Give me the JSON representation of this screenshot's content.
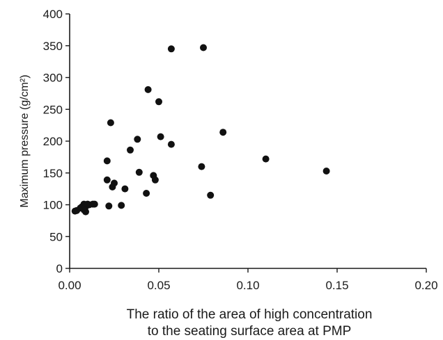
{
  "chart_data": {
    "type": "scatter",
    "title": "",
    "xlabel_lines": [
      "The ratio of the area of high concentration",
      "to the seating surface area at PMP"
    ],
    "ylabel": "Maximum pressure (g/cm²)",
    "xlim": [
      0,
      0.2
    ],
    "ylim": [
      0,
      400
    ],
    "x_ticks": [
      "0.00",
      "0.05",
      "0.10",
      "0.15",
      "0.20"
    ],
    "y_ticks": [
      "0",
      "50",
      "100",
      "150",
      "200",
      "250",
      "300",
      "350",
      "400"
    ],
    "grid": false,
    "marker_color": "#111111",
    "points": [
      {
        "x": 0.003,
        "y": 90
      },
      {
        "x": 0.004,
        "y": 91
      },
      {
        "x": 0.006,
        "y": 95
      },
      {
        "x": 0.007,
        "y": 97
      },
      {
        "x": 0.008,
        "y": 101
      },
      {
        "x": 0.008,
        "y": 92
      },
      {
        "x": 0.009,
        "y": 89
      },
      {
        "x": 0.009,
        "y": 97
      },
      {
        "x": 0.01,
        "y": 101
      },
      {
        "x": 0.011,
        "y": 100
      },
      {
        "x": 0.013,
        "y": 101
      },
      {
        "x": 0.014,
        "y": 101
      },
      {
        "x": 0.021,
        "y": 169
      },
      {
        "x": 0.021,
        "y": 139
      },
      {
        "x": 0.022,
        "y": 98
      },
      {
        "x": 0.023,
        "y": 229
      },
      {
        "x": 0.024,
        "y": 128
      },
      {
        "x": 0.025,
        "y": 134
      },
      {
        "x": 0.029,
        "y": 99
      },
      {
        "x": 0.031,
        "y": 125
      },
      {
        "x": 0.034,
        "y": 186
      },
      {
        "x": 0.038,
        "y": 203
      },
      {
        "x": 0.039,
        "y": 151
      },
      {
        "x": 0.043,
        "y": 118
      },
      {
        "x": 0.044,
        "y": 281
      },
      {
        "x": 0.047,
        "y": 146
      },
      {
        "x": 0.048,
        "y": 139
      },
      {
        "x": 0.05,
        "y": 262
      },
      {
        "x": 0.051,
        "y": 207
      },
      {
        "x": 0.057,
        "y": 345
      },
      {
        "x": 0.057,
        "y": 195
      },
      {
        "x": 0.074,
        "y": 160
      },
      {
        "x": 0.075,
        "y": 347
      },
      {
        "x": 0.079,
        "y": 115
      },
      {
        "x": 0.086,
        "y": 214
      },
      {
        "x": 0.11,
        "y": 172
      },
      {
        "x": 0.144,
        "y": 153
      }
    ]
  }
}
